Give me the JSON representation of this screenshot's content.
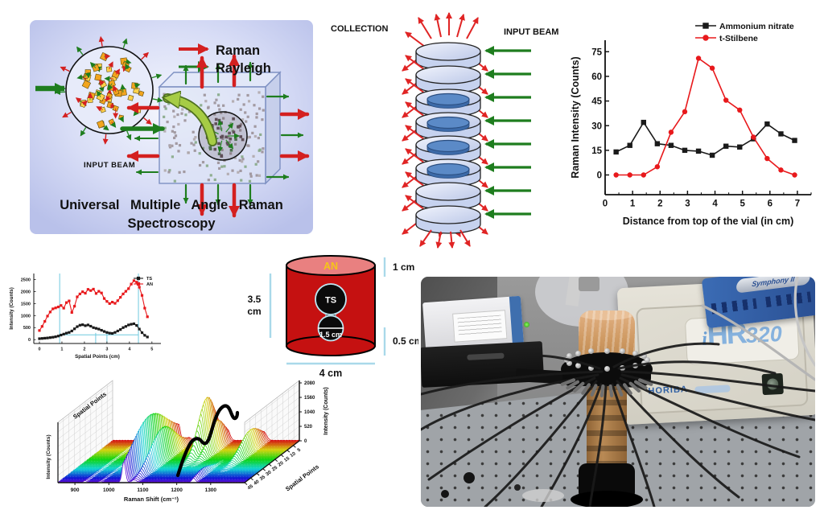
{
  "panels": {
    "umars": {
      "raman_label": "Raman",
      "rayleigh_label": "Rayleigh",
      "input_beam_label": "INPUT BEAM",
      "caption_line1": "Universal Multiple Angle Raman",
      "caption_line2": "Spectroscopy",
      "raman_color": "#d42020",
      "rayleigh_color": "#1e7d1e"
    },
    "stack": {
      "collection_label": "COLLECTION",
      "input_beam_label": "INPUT BEAM",
      "disk_count": 8,
      "sample_disk_indices": [
        2,
        3,
        4,
        5
      ],
      "raman_arrow_color": "#e02424",
      "input_arrow_color": "#1e7d1e"
    },
    "cylinder": {
      "top_label": "AN",
      "sphere_label": "TS",
      "inner_dim_label": "1.5 cm",
      "height_dim_line1": "3.5",
      "height_dim_line2": "cm",
      "top_dim_label": "1 cm",
      "bottom_dim_label": "0.5 cm",
      "width_dim_label": "4 cm",
      "body_color": "#c51111",
      "dim_line_color": "#a9d9ea"
    },
    "photo": {
      "detector_label": "Symphony II",
      "spectrometer_label_i": "i",
      "spectrometer_label_hr": "HR",
      "spectrometer_label_num": "320",
      "brand_label": "HORIBA"
    }
  },
  "chart_data": [
    {
      "type": "line",
      "title": "",
      "xlabel": "Distance from top of the vial (in cm)",
      "ylabel": "Raman Intensity (Counts)",
      "xlim": [
        0,
        7.5
      ],
      "ylim": [
        -12,
        82
      ],
      "xticks": [
        0,
        1,
        2,
        3,
        4,
        5,
        6,
        7
      ],
      "x_minor_step": 0.5,
      "yticks": [
        0,
        15,
        30,
        45,
        60,
        75
      ],
      "legend_position": "top-right",
      "grid": false,
      "series": [
        {
          "name": "Ammonium nitrate",
          "color": "#1a1a1a",
          "marker": "square",
          "x": [
            0.4,
            0.9,
            1.4,
            1.9,
            2.4,
            2.9,
            3.4,
            3.9,
            4.4,
            4.9,
            5.4,
            5.9,
            6.4,
            6.9
          ],
          "y": [
            14,
            18,
            32,
            19,
            18,
            15,
            14.5,
            12,
            17.5,
            17,
            22,
            31,
            25,
            21
          ]
        },
        {
          "name": "t-Stilbene",
          "color": "#e8191c",
          "marker": "circle",
          "x": [
            0.4,
            0.9,
            1.4,
            1.9,
            2.4,
            2.9,
            3.4,
            3.9,
            4.4,
            4.9,
            5.4,
            5.9,
            6.4,
            6.9
          ],
          "y": [
            0,
            0,
            0,
            5,
            26,
            38.5,
            71,
            65,
            45.5,
            39.5,
            23,
            10,
            3,
            0
          ]
        }
      ]
    },
    {
      "type": "line",
      "title": "",
      "xlabel": "Spatial Points (cm)",
      "ylabel": "Intensity (Counts)",
      "xlim": [
        -0.25,
        5.4
      ],
      "ylim": [
        -160,
        2750
      ],
      "xticks": [
        0,
        1,
        2,
        3,
        4,
        5
      ],
      "yticks": [
        0,
        500,
        1000,
        1500,
        2000,
        2500
      ],
      "legend_position": "top-right",
      "grid": false,
      "guides": {
        "color": "#6fc9de",
        "vlines_full": [
          0.9,
          4.4
        ],
        "vlines_partial": [
          2.5,
          3.0
        ],
        "vline_partial_top": 280,
        "hline": {
          "y": 200,
          "x1": 0.9,
          "x2": 4.4
        }
      },
      "series": [
        {
          "name": "TS",
          "color": "#1a1a1a",
          "marker": "square",
          "x_start": 0,
          "x_step": 0.12,
          "y": [
            40,
            50,
            60,
            70,
            85,
            100,
            120,
            150,
            190,
            230,
            270,
            300,
            360,
            450,
            540,
            600,
            620,
            580,
            610,
            560,
            500,
            470,
            440,
            390,
            340,
            300,
            270,
            260,
            300,
            360,
            420,
            500,
            550,
            610,
            640,
            660,
            590,
            440,
            290,
            180,
            110
          ]
        },
        {
          "name": "AN",
          "color": "#e8191c",
          "marker": "square",
          "x_start": 0,
          "x_step": 0.12,
          "y": [
            380,
            550,
            760,
            980,
            1150,
            1280,
            1320,
            1360,
            1420,
            1310,
            1540,
            1610,
            1130,
            1390,
            1780,
            1900,
            1990,
            1930,
            2090,
            2040,
            2100,
            1920,
            2010,
            1940,
            1710,
            1590,
            1500,
            1560,
            1510,
            1620,
            1760,
            1900,
            2010,
            2120,
            2310,
            2450,
            2390,
            2180,
            1840,
            1310,
            950
          ]
        }
      ]
    },
    {
      "type": "line",
      "variant": "3d-waterfall",
      "xlabel": "Raman Shift (cm⁻¹)",
      "ylabel_left": "Intensity (Counts)",
      "ylabel_right": "Intensity (Counts)",
      "depth_label": "Spatial Points",
      "wall_label": "Spatial Points",
      "xlim": [
        850,
        1400
      ],
      "xticks": [
        900,
        1000,
        1100,
        1200,
        1300
      ],
      "yticks_right": [
        0,
        520,
        1040,
        1560,
        2080
      ],
      "depth_ticks": [
        5,
        10,
        15,
        20,
        25,
        30,
        35,
        40,
        45
      ],
      "rows": {
        "count": 46,
        "back_value": 0,
        "front_value": 45
      },
      "color_map": "rainbow back=red front=violet",
      "bands": [
        {
          "center": 1044,
          "width": 5,
          "amp_base": 250,
          "amp_peak": 1500,
          "row_center": 24,
          "row_sigma2": 400
        },
        {
          "center": 1075,
          "width": 7,
          "amp_base": 0,
          "amp_peak": 1200,
          "row_center": 22,
          "row_sigma2": 200
        },
        {
          "center": 1160,
          "width": 9,
          "amp_base": 0,
          "amp_peak": 1850,
          "row_center": 9,
          "row_sigma2": 90
        },
        {
          "center": 1188,
          "width": 7,
          "amp_base": 0,
          "amp_peak": 1000,
          "row_center": 9,
          "row_sigma2": 90
        },
        {
          "center": 1295,
          "width": 8,
          "amp_base": 0,
          "amp_peak": 750,
          "row_center": 11,
          "row_sigma2": 140
        },
        {
          "center": 1250,
          "width": 5,
          "amp_base": 0,
          "amp_peak": 260,
          "row_center": 38,
          "row_sigma2": 90
        },
        {
          "center": 930,
          "width": 4,
          "amp_base": 60,
          "amp_peak": 0,
          "row_center": 20,
          "row_sigma2": 200
        },
        {
          "center": 975,
          "width": 4,
          "amp_base": 45,
          "amp_peak": 0,
          "row_center": 20,
          "row_sigma2": 200
        }
      ],
      "annotations": [
        {
          "type": "hand-drawn-curve",
          "color": "#000000"
        }
      ]
    }
  ]
}
